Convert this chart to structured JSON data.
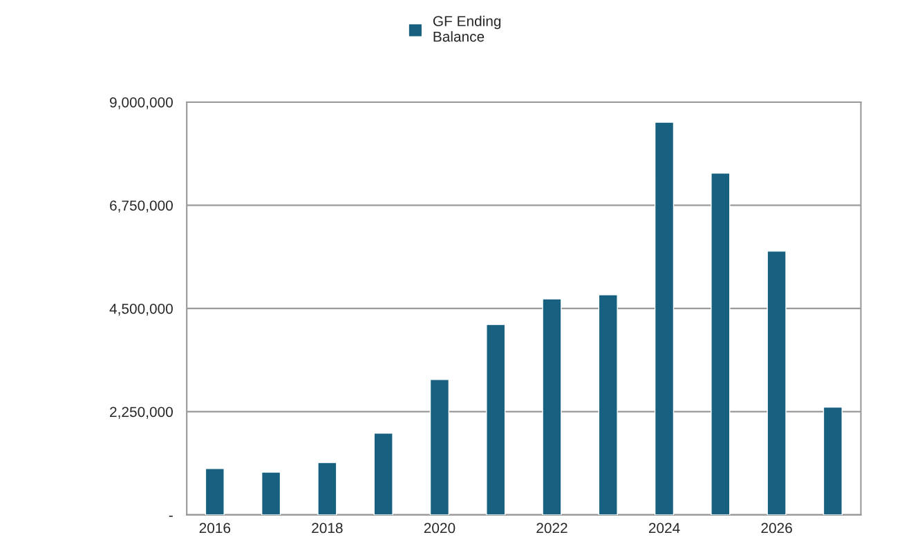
{
  "chart_data": {
    "type": "bar",
    "categories": [
      "2016",
      null,
      "2018",
      null,
      "2020",
      null,
      "2022",
      null,
      "2024",
      null,
      "2026",
      null
    ],
    "series": [
      {
        "name": "GF Ending\nBalance",
        "color": "#17607f",
        "values": [
          1010000,
          930000,
          1140000,
          1780000,
          2950000,
          4150000,
          4710000,
          4800000,
          8560000,
          7450000,
          5750000,
          2350000
        ]
      }
    ],
    "ylim": [
      0,
      9000000
    ],
    "yticks": [
      {
        "value": 0,
        "label": "-"
      },
      {
        "value": 2250000,
        "label": "2,250,000"
      },
      {
        "value": 4500000,
        "label": "4,500,000"
      },
      {
        "value": 6750000,
        "label": "6,750,000"
      },
      {
        "value": 9000000,
        "label": "9,000,000"
      }
    ],
    "grid": "y",
    "legend": "top"
  }
}
